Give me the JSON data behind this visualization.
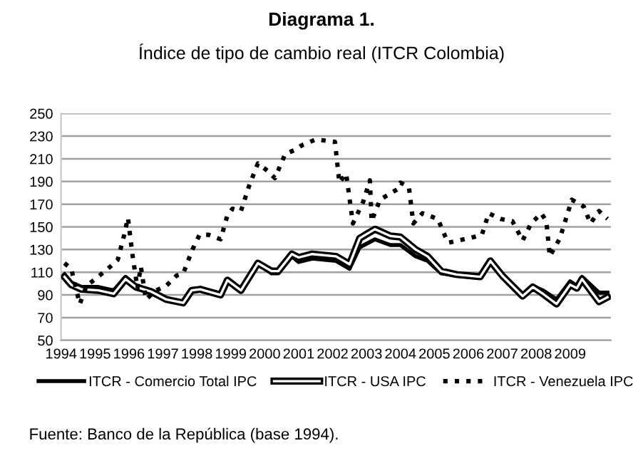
{
  "chart_data": {
    "type": "line",
    "title": "Diagrama 1.",
    "subtitle": "Índice de tipo de cambio real (ITCR Colombia)",
    "xlim": [
      1994,
      2010.2
    ],
    "xticks": [
      1994,
      1995,
      1996,
      1997,
      1998,
      1999,
      2000,
      2001,
      2002,
      2003,
      2004,
      2005,
      2006,
      2007,
      2008,
      2009
    ],
    "ylim": [
      50,
      250
    ],
    "yticks": [
      50,
      70,
      90,
      110,
      130,
      150,
      170,
      190,
      210,
      230,
      250
    ],
    "grid": "y",
    "legend": "bottom",
    "marker": "none",
    "annotations": [
      "Fuente: Banco de la República (base 1994)."
    ],
    "series": [
      {
        "name": "ITCR - Comercio Total IPC",
        "color": "#000000",
        "line_style": "solid",
        "x": [
          1994.1,
          1994.3,
          1994.6,
          1995.1,
          1995.55,
          1995.9,
          1996.2,
          1996.65,
          1997.1,
          1997.6,
          1997.85,
          1998.1,
          1998.7,
          1998.9,
          1999.3,
          1999.8,
          2000.2,
          2000.4,
          2000.8,
          2001.0,
          2001.4,
          2002.1,
          2002.5,
          2002.8,
          2003.25,
          2003.7,
          2004.0,
          2004.45,
          2004.8,
          2005.2,
          2005.65,
          2006.35,
          2006.65,
          2007.0,
          2007.6,
          2007.9,
          2008.2,
          2008.6,
          2009.0,
          2009.2,
          2009.35,
          2009.85,
          2010.1
        ],
        "values": [
          108,
          101,
          97,
          97,
          94,
          106,
          98,
          94,
          86,
          83,
          94,
          95,
          90,
          103,
          94,
          118,
          109,
          109,
          124,
          119,
          122,
          120,
          113,
          132,
          139,
          134,
          134,
          124,
          120,
          109,
          107,
          105,
          120,
          107,
          90,
          98,
          94,
          86,
          102,
          98,
          106,
          92,
          92
        ]
      },
      {
        "name": "ITCR - USA IPC",
        "color": "#000000",
        "line_style": "solid",
        "x": [
          1994.1,
          1994.3,
          1994.6,
          1995.1,
          1995.55,
          1995.9,
          1996.2,
          1996.65,
          1997.1,
          1997.6,
          1997.85,
          1998.1,
          1998.7,
          1998.9,
          1999.3,
          1999.8,
          2000.2,
          2000.4,
          2000.8,
          2001.0,
          2001.4,
          2002.1,
          2002.5,
          2002.8,
          2003.25,
          2003.7,
          2004.0,
          2004.45,
          2004.8,
          2005.2,
          2005.65,
          2006.35,
          2006.65,
          2007.0,
          2007.6,
          2007.9,
          2008.2,
          2008.6,
          2009.0,
          2009.2,
          2009.35,
          2009.85,
          2010.1
        ],
        "values": [
          106,
          99,
          95,
          94,
          91,
          104,
          97,
          93,
          86,
          83,
          94,
          95,
          90,
          103,
          94,
          118,
          111,
          111,
          126,
          123,
          126,
          124,
          117,
          140,
          148,
          142,
          141,
          130,
          124,
          111,
          108,
          106,
          120,
          107,
          89,
          97,
          91,
          82,
          99,
          96,
          104,
          84,
          88
        ]
      },
      {
        "name": "ITCR - Venezuela IPC",
        "color": "#000000",
        "line_style": "dotted",
        "x": [
          1994.1,
          1994.3,
          1994.55,
          1994.75,
          1995.13,
          1995.45,
          1995.67,
          1995.86,
          1995.97,
          1996.1,
          1996.25,
          1996.35,
          1996.5,
          1996.8,
          1997.1,
          1997.4,
          1997.6,
          1997.87,
          1998.08,
          1998.35,
          1998.7,
          1998.9,
          1999.05,
          1999.3,
          1999.55,
          1999.8,
          2000.1,
          2000.3,
          2000.6,
          2000.9,
          2001.1,
          2001.5,
          2002.07,
          2002.2,
          2002.4,
          2002.6,
          2002.9,
          2003.1,
          2003.15,
          2003.4,
          2003.9,
          2004.0,
          2004.25,
          2004.38,
          2004.65,
          2005.1,
          2005.4,
          2006.03,
          2006.4,
          2006.6,
          2006.95,
          2007.3,
          2007.6,
          2007.85,
          2008.15,
          2008.3,
          2008.4,
          2008.7,
          2009.05,
          2009.4,
          2009.6,
          2009.85,
          2010.1
        ],
        "values": [
          118,
          113,
          82,
          98,
          107,
          115,
          121,
          143,
          158,
          126,
          96,
          115,
          86,
          94,
          98,
          107,
          109,
          130,
          143,
          143,
          139,
          160,
          166,
          164,
          187,
          206,
          199,
          193,
          214,
          218,
          222,
          227,
          225,
          189,
          197,
          153,
          172,
          191,
          155,
          174,
          183,
          189,
          185,
          153,
          162,
          157,
          136,
          140,
          143,
          162,
          157,
          155,
          138,
          153,
          162,
          155,
          124,
          140,
          174,
          168,
          153,
          164,
          157
        ]
      }
    ]
  }
}
